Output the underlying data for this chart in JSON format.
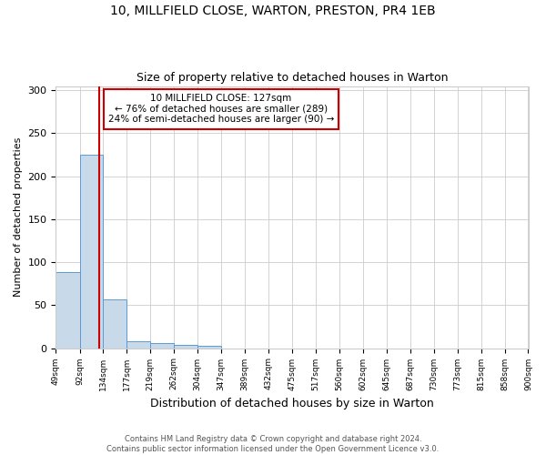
{
  "title_line1": "10, MILLFIELD CLOSE, WARTON, PRESTON, PR4 1EB",
  "title_line2": "Size of property relative to detached houses in Warton",
  "xlabel": "Distribution of detached houses by size in Warton",
  "ylabel": "Number of detached properties",
  "footnote": "Contains HM Land Registry data © Crown copyright and database right 2024.\nContains public sector information licensed under the Open Government Licence v3.0.",
  "bar_edges": [
    49,
    92,
    134,
    177,
    219,
    262,
    304,
    347,
    389,
    432,
    475,
    517,
    560,
    602,
    645,
    687,
    730,
    773,
    815,
    858,
    900
  ],
  "bar_heights": [
    88,
    225,
    57,
    8,
    6,
    4,
    3,
    0,
    0,
    0,
    0,
    0,
    0,
    0,
    0,
    0,
    0,
    0,
    0,
    0
  ],
  "bar_color": "#c8d9ea",
  "bar_edge_color": "#5b9bd5",
  "property_size": 127,
  "property_label": "10 MILLFIELD CLOSE: 127sqm",
  "annotation_line2": "← 76% of detached houses are smaller (289)",
  "annotation_line3": "24% of semi-detached houses are larger (90) →",
  "vline_color": "#cc0000",
  "annotation_box_color": "#cc0000",
  "ylim": [
    0,
    305
  ],
  "yticks": [
    0,
    50,
    100,
    150,
    200,
    250,
    300
  ],
  "background_color": "#ffffff",
  "grid_color": "#cccccc"
}
